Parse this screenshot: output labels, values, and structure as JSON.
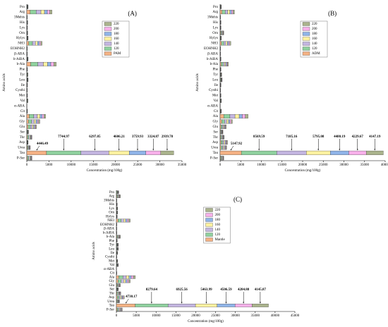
{
  "chart_data": [
    {
      "type": "bar",
      "orientation": "horizontal",
      "stacked": true,
      "title": "(A)",
      "x_label": "Concentration (mg/100g)",
      "y_label": "Amino acids",
      "categories": [
        "Pro",
        "Arg",
        "3Mehis",
        "His",
        "Lys",
        "Orn",
        "Hylys",
        "NH3",
        "EOHNH2",
        "β-ABA",
        "b-AiBA",
        "b-Ala",
        "Phe",
        "Tyr",
        "Leu",
        "Ile",
        "Cysthi",
        "Met",
        "Val",
        "α-ABA",
        "Cit",
        "Ala",
        "Gly",
        "Glu",
        "Ser",
        "Thr",
        "Asp",
        "Urea",
        "Tau",
        "P-Ser"
      ],
      "xlim": [
        0,
        35000
      ],
      "xticks": [
        0,
        5000,
        10000,
        15000,
        20000,
        25000,
        30000,
        35000
      ],
      "legend": "right",
      "series": [
        {
          "name": "PAM",
          "color": "#f4b183",
          "values": [
            40,
            750,
            13,
            26,
            20,
            26,
            40,
            455,
            13,
            13,
            40,
            880,
            20,
            32,
            40,
            20,
            13,
            20,
            32,
            7,
            20,
            560,
            390,
            286,
            52,
            156,
            40,
            104,
            4446.49,
            156
          ]
        },
        {
          "name": "120",
          "color": "#8fd19e",
          "values": [
            70,
            1350,
            23,
            47,
            36,
            47,
            70,
            820,
            23,
            23,
            70,
            1580,
            36,
            58,
            70,
            36,
            23,
            36,
            58,
            12,
            36,
            1010,
            700,
            515,
            94,
            280,
            70,
            187,
            7744.97,
            280
          ]
        },
        {
          "name": "140",
          "color": "#c3b5e0",
          "values": [
            57,
            1090,
            19,
            38,
            29,
            38,
            57,
            660,
            19,
            19,
            57,
            1280,
            29,
            46,
            57,
            29,
            19,
            29,
            46,
            10,
            29,
            810,
            565,
            415,
            75,
            226,
            57,
            150,
            6297.85,
            226
          ]
        },
        {
          "name": "160",
          "color": "#fff2a0",
          "values": [
            42,
            790,
            14,
            27,
            21,
            27,
            42,
            480,
            14,
            14,
            42,
            920,
            21,
            34,
            42,
            21,
            14,
            21,
            34,
            7,
            21,
            590,
            410,
            300,
            55,
            164,
            42,
            110,
            4606.21,
            164
          ]
        },
        {
          "name": "180",
          "color": "#8fb4e8",
          "values": [
            34,
            640,
            11,
            22,
            17,
            22,
            34,
            390,
            11,
            11,
            34,
            750,
            17,
            27,
            34,
            17,
            11,
            17,
            27,
            6,
            17,
            475,
            330,
            243,
            44,
            133,
            34,
            88,
            3759.93,
            133
          ]
        },
        {
          "name": "200",
          "color": "#f7b0ea",
          "values": [
            30,
            560,
            10,
            20,
            15,
            20,
            30,
            340,
            10,
            10,
            30,
            660,
            15,
            24,
            30,
            15,
            10,
            15,
            24,
            5,
            15,
            420,
            290,
            215,
            39,
            117,
            30,
            78,
            3324.87,
            117
          ]
        },
        {
          "name": "220",
          "color": "#aab38c",
          "values": [
            26,
            495,
            9,
            17,
            13,
            17,
            26,
            300,
            9,
            9,
            26,
            580,
            13,
            21,
            26,
            13,
            9,
            13,
            21,
            5,
            13,
            370,
            257,
            190,
            34,
            103,
            26,
            69,
            2939.78,
            103
          ]
        }
      ]
    },
    {
      "type": "bar",
      "orientation": "horizontal",
      "stacked": true,
      "title": "(B)",
      "x_label": "Concentration (mg/100g)",
      "y_label": "Amino acids",
      "categories": [
        "Pro",
        "Arg",
        "3Mehis",
        "His",
        "Lys",
        "Orn",
        "Hylys",
        "NH3",
        "EOHNH2",
        "β-ABA",
        "b-AiBA",
        "b-Ala",
        "Phe",
        "Tyr",
        "Leu",
        "Ile",
        "Cysthi",
        "Met",
        "Val",
        "α-ABA",
        "Cit",
        "Ala",
        "Gly",
        "Glu",
        "Ser",
        "Thr",
        "Asp",
        "Urea",
        "Tau",
        "P-Ser"
      ],
      "xlim": [
        0,
        40000
      ],
      "xticks": [
        0,
        5000,
        10000,
        15000,
        20000,
        25000,
        30000,
        35000,
        40000
      ],
      "legend": "right",
      "series": [
        {
          "name": "ADM",
          "color": "#f4b183",
          "values": [
            39,
            455,
            13,
            26,
            26,
            117,
            39,
            338,
            13,
            13,
            26,
            260,
            26,
            52,
            65,
            26,
            13,
            26,
            39,
            7,
            39,
            884,
            390,
            195,
            91,
            130,
            234,
            208,
            5147.92,
            117
          ]
        },
        {
          "name": "120",
          "color": "#8fd19e",
          "values": [
            66,
            770,
            22,
            44,
            44,
            198,
            66,
            572,
            22,
            22,
            44,
            440,
            44,
            88,
            110,
            44,
            22,
            44,
            66,
            11,
            66,
            1496,
            660,
            330,
            154,
            220,
            396,
            352,
            8569.59,
            198
          ]
        },
        {
          "name": "140",
          "color": "#c3b5e0",
          "values": [
            54,
            630,
            18,
            36,
            36,
            162,
            54,
            468,
            18,
            18,
            36,
            360,
            36,
            72,
            90,
            36,
            18,
            36,
            54,
            9,
            54,
            1224,
            540,
            270,
            126,
            180,
            324,
            288,
            7185.16,
            162
          ]
        },
        {
          "name": "160",
          "color": "#fff2a0",
          "values": [
            45,
            525,
            15,
            30,
            30,
            135,
            45,
            390,
            15,
            15,
            30,
            300,
            30,
            60,
            75,
            30,
            15,
            30,
            45,
            8,
            45,
            1020,
            450,
            225,
            105,
            150,
            270,
            240,
            5795.08,
            135
          ]
        },
        {
          "name": "180",
          "color": "#8fb4e8",
          "values": [
            33,
            385,
            11,
            22,
            22,
            99,
            33,
            286,
            11,
            11,
            22,
            220,
            22,
            44,
            55,
            22,
            11,
            22,
            33,
            6,
            33,
            748,
            330,
            165,
            77,
            110,
            198,
            176,
            4480.19,
            99
          ]
        },
        {
          "name": "200",
          "color": "#f7b0ea",
          "values": [
            32,
            370,
            11,
            21,
            21,
            95,
            32,
            275,
            11,
            11,
            21,
            210,
            21,
            42,
            53,
            21,
            11,
            21,
            32,
            6,
            32,
            720,
            318,
            160,
            74,
            106,
            190,
            170,
            4229.67,
            95
          ]
        },
        {
          "name": "220",
          "color": "#aab38c",
          "values": [
            30,
            350,
            10,
            20,
            20,
            90,
            30,
            260,
            10,
            10,
            20,
            200,
            20,
            40,
            50,
            20,
            10,
            20,
            30,
            5,
            30,
            680,
            300,
            150,
            70,
            100,
            180,
            160,
            4147.19,
            90
          ]
        }
      ]
    },
    {
      "type": "bar",
      "orientation": "horizontal",
      "stacked": true,
      "title": "(C)",
      "x_label": "Concentration (mg/100g)",
      "y_label": "Amino acids",
      "categories": [
        "Pro",
        "Arg",
        "3Mehis",
        "His",
        "Lys",
        "Orn",
        "Hylys",
        "NH3",
        "EOHNH2",
        "β-ABA",
        "b-AiBA",
        "b-Ala",
        "Phe",
        "Tyr",
        "Leu",
        "Ile",
        "Cysthi",
        "Met",
        "Val",
        "α-ABA",
        "Cit",
        "Ala",
        "Gly",
        "Glu",
        "Ser",
        "Thr",
        "Asp",
        "Urea",
        "Tau",
        "P-Ser"
      ],
      "xlim": [
        0,
        45000
      ],
      "xticks": [
        0,
        5000,
        10000,
        15000,
        20000,
        25000,
        30000,
        35000,
        40000,
        45000
      ],
      "legend": "right",
      "series": [
        {
          "name": "Mantle",
          "color": "#f4b183",
          "values": [
            72,
            120,
            12,
            24,
            36,
            36,
            24,
            420,
            12,
            12,
            12,
            120,
            24,
            60,
            60,
            36,
            12,
            36,
            60,
            6,
            12,
            576,
            420,
            120,
            60,
            132,
            240,
            96,
            4730.17,
            180
          ]
        },
        {
          "name": "120",
          "color": "#8fd19e",
          "values": [
            132,
            220,
            22,
            44,
            66,
            66,
            44,
            770,
            22,
            22,
            22,
            220,
            44,
            110,
            110,
            66,
            22,
            66,
            110,
            11,
            22,
            1056,
            770,
            220,
            110,
            242,
            440,
            176,
            8279.64,
            330
          ]
        },
        {
          "name": "140",
          "color": "#c3b5e0",
          "values": [
            108,
            180,
            18,
            36,
            54,
            54,
            36,
            630,
            18,
            18,
            18,
            180,
            36,
            90,
            90,
            54,
            18,
            54,
            90,
            9,
            18,
            864,
            630,
            180,
            90,
            198,
            360,
            144,
            6925.56,
            270
          ]
        },
        {
          "name": "160",
          "color": "#fff2a0",
          "values": [
            84,
            140,
            14,
            28,
            42,
            42,
            28,
            490,
            14,
            14,
            14,
            140,
            28,
            70,
            70,
            42,
            14,
            42,
            70,
            7,
            14,
            672,
            490,
            140,
            70,
            154,
            280,
            112,
            5463.99,
            210
          ]
        },
        {
          "name": "180",
          "color": "#8fb4e8",
          "values": [
            72,
            120,
            12,
            24,
            36,
            36,
            24,
            420,
            12,
            12,
            12,
            120,
            24,
            60,
            60,
            36,
            12,
            36,
            60,
            6,
            12,
            576,
            420,
            120,
            60,
            132,
            240,
            96,
            4506.59,
            180
          ]
        },
        {
          "name": "200",
          "color": "#f7b0ea",
          "values": [
            66,
            110,
            11,
            22,
            33,
            33,
            22,
            385,
            11,
            11,
            11,
            110,
            22,
            55,
            55,
            33,
            11,
            33,
            55,
            6,
            11,
            528,
            385,
            110,
            55,
            121,
            220,
            88,
            4284.88,
            165
          ]
        },
        {
          "name": "220",
          "color": "#aab38c",
          "values": [
            64,
            106,
            11,
            21,
            32,
            32,
            21,
            370,
            11,
            11,
            11,
            106,
            21,
            53,
            53,
            32,
            11,
            32,
            53,
            6,
            11,
            510,
            370,
            106,
            53,
            117,
            212,
            85,
            4145.87,
            160
          ]
        }
      ]
    }
  ]
}
